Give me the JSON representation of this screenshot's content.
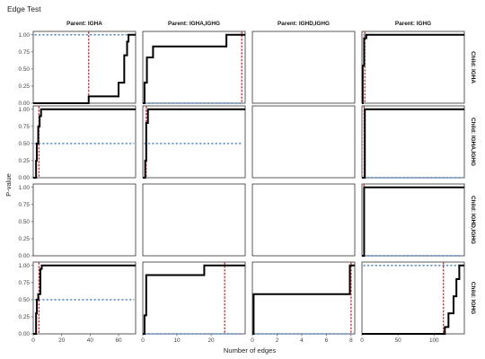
{
  "chart_data": {
    "type": "line",
    "title": "Edge Test",
    "xlabel": "Number of edges",
    "ylabel": "P-value",
    "col_strips": [
      "Parent: IGHA",
      "Parent: IGHA,IGHG",
      "Parent: IGHD,IGHG",
      "Parent: IGHG"
    ],
    "row_strips": [
      "Child: IGHA",
      "Child: IGHA,IGHG",
      "Child: IGHD,IGHG",
      "Child: IGHG"
    ],
    "y_ticks": [
      "0.00",
      "0.25",
      "0.50",
      "0.75",
      "1.00"
    ],
    "ylim": [
      0,
      1.05
    ],
    "columns": [
      {
        "xlim": [
          0,
          72
        ],
        "xticks": [
          0,
          20,
          40,
          60
        ],
        "xtick_labels": [
          "0",
          "20",
          "40",
          "60"
        ]
      },
      {
        "xlim": [
          0,
          30
        ],
        "xticks": [
          0,
          10,
          20
        ],
        "xtick_labels": [
          "0",
          "10",
          "20"
        ]
      },
      {
        "xlim": [
          0,
          8.3
        ],
        "xticks": [
          0,
          2,
          4,
          6,
          8
        ],
        "xtick_labels": [
          "0",
          "2",
          "4",
          "6",
          "8"
        ]
      },
      {
        "xlim": [
          0,
          142
        ],
        "xticks": [
          0,
          50,
          100
        ],
        "xtick_labels": [
          "0",
          "50",
          "100"
        ]
      }
    ],
    "panels": [
      {
        "row": 0,
        "col": 0,
        "empty": false,
        "observed": 39,
        "threshold": 1.0,
        "curve": [
          [
            0,
            0
          ],
          [
            39,
            0
          ],
          [
            39,
            0.1
          ],
          [
            60,
            0.1
          ],
          [
            60,
            0.3
          ],
          [
            64,
            0.3
          ],
          [
            64,
            0.7
          ],
          [
            66,
            0.7
          ],
          [
            66,
            0.9
          ],
          [
            67,
            0.9
          ],
          [
            67,
            1.0
          ],
          [
            72,
            1.0
          ]
        ]
      },
      {
        "row": 0,
        "col": 1,
        "empty": false,
        "observed": 29,
        "threshold": 0.0,
        "curve": [
          [
            0,
            0
          ],
          [
            0.5,
            0
          ],
          [
            0.5,
            0.3
          ],
          [
            1.2,
            0.3
          ],
          [
            1.2,
            0.67
          ],
          [
            3,
            0.67
          ],
          [
            3,
            0.83
          ],
          [
            24.5,
            0.83
          ],
          [
            24.5,
            1.0
          ],
          [
            30,
            1.0
          ]
        ]
      },
      {
        "row": 0,
        "col": 2,
        "empty": true
      },
      {
        "row": 0,
        "col": 3,
        "empty": false,
        "observed": 4,
        "threshold": 1.0,
        "curve": [
          [
            0,
            0
          ],
          [
            1,
            0
          ],
          [
            1,
            0.55
          ],
          [
            3,
            0.55
          ],
          [
            3,
            0.95
          ],
          [
            6,
            0.95
          ],
          [
            6,
            1.0
          ],
          [
            142,
            1.0
          ]
        ]
      },
      {
        "row": 1,
        "col": 0,
        "empty": false,
        "observed": 4,
        "threshold": 0.5,
        "curve": [
          [
            0,
            0
          ],
          [
            2,
            0
          ],
          [
            2,
            0.25
          ],
          [
            2.5,
            0.25
          ],
          [
            2.5,
            0.5
          ],
          [
            3.5,
            0.5
          ],
          [
            3.5,
            0.75
          ],
          [
            4.5,
            0.75
          ],
          [
            4.5,
            0.9
          ],
          [
            5.5,
            0.9
          ],
          [
            5.5,
            1.0
          ],
          [
            72,
            1.0
          ]
        ]
      },
      {
        "row": 1,
        "col": 1,
        "empty": false,
        "observed": 1,
        "threshold": 0.5,
        "curve": [
          [
            0,
            0
          ],
          [
            0.7,
            0
          ],
          [
            0.7,
            0.25
          ],
          [
            1.0,
            0.25
          ],
          [
            1.0,
            0.8
          ],
          [
            1.5,
            0.8
          ],
          [
            1.5,
            1.0
          ],
          [
            30,
            1.0
          ]
        ]
      },
      {
        "row": 1,
        "col": 2,
        "empty": true
      },
      {
        "row": 1,
        "col": 3,
        "empty": false,
        "observed": 3,
        "threshold": 0.0,
        "curve": [
          [
            0,
            0
          ],
          [
            4,
            0
          ],
          [
            4,
            1.0
          ],
          [
            142,
            1.0
          ]
        ]
      },
      {
        "row": 2,
        "col": 0,
        "empty": true
      },
      {
        "row": 2,
        "col": 1,
        "empty": true
      },
      {
        "row": 2,
        "col": 2,
        "empty": true
      },
      {
        "row": 2,
        "col": 3,
        "empty": false,
        "observed": 3,
        "threshold": 0.0,
        "curve": [
          [
            0,
            0
          ],
          [
            3,
            0
          ],
          [
            3,
            1.0
          ],
          [
            142,
            1.0
          ]
        ]
      },
      {
        "row": 3,
        "col": 0,
        "empty": false,
        "observed": 4,
        "threshold": 0.5,
        "curve": [
          [
            0,
            0
          ],
          [
            2,
            0
          ],
          [
            2,
            0.3
          ],
          [
            2.5,
            0.3
          ],
          [
            2.5,
            0.5
          ],
          [
            3.5,
            0.5
          ],
          [
            3.5,
            0.58
          ],
          [
            5,
            0.58
          ],
          [
            5,
            0.95
          ],
          [
            6,
            0.95
          ],
          [
            6,
            1.0
          ],
          [
            72,
            1.0
          ]
        ]
      },
      {
        "row": 3,
        "col": 1,
        "empty": false,
        "observed": 24,
        "threshold": 0.0,
        "curve": [
          [
            0,
            0
          ],
          [
            0.5,
            0
          ],
          [
            0.5,
            0.27
          ],
          [
            1.0,
            0.27
          ],
          [
            1.0,
            0.86
          ],
          [
            18,
            0.86
          ],
          [
            18,
            1.0
          ],
          [
            30,
            1.0
          ]
        ]
      },
      {
        "row": 3,
        "col": 2,
        "empty": false,
        "observed": 8,
        "threshold": 0.0,
        "curve": [
          [
            0,
            0
          ],
          [
            0.1,
            0
          ],
          [
            0.1,
            0.58
          ],
          [
            7.9,
            0.58
          ],
          [
            7.9,
            1.0
          ],
          [
            8.3,
            1.0
          ]
        ]
      },
      {
        "row": 3,
        "col": 3,
        "empty": false,
        "observed": 113,
        "threshold": 1.0,
        "curve": [
          [
            0,
            0
          ],
          [
            115,
            0
          ],
          [
            115,
            0.1
          ],
          [
            120,
            0.1
          ],
          [
            120,
            0.3
          ],
          [
            127,
            0.3
          ],
          [
            127,
            0.55
          ],
          [
            131,
            0.55
          ],
          [
            131,
            0.8
          ],
          [
            135,
            0.8
          ],
          [
            135,
            1.0
          ],
          [
            142,
            1.0
          ]
        ]
      }
    ]
  }
}
